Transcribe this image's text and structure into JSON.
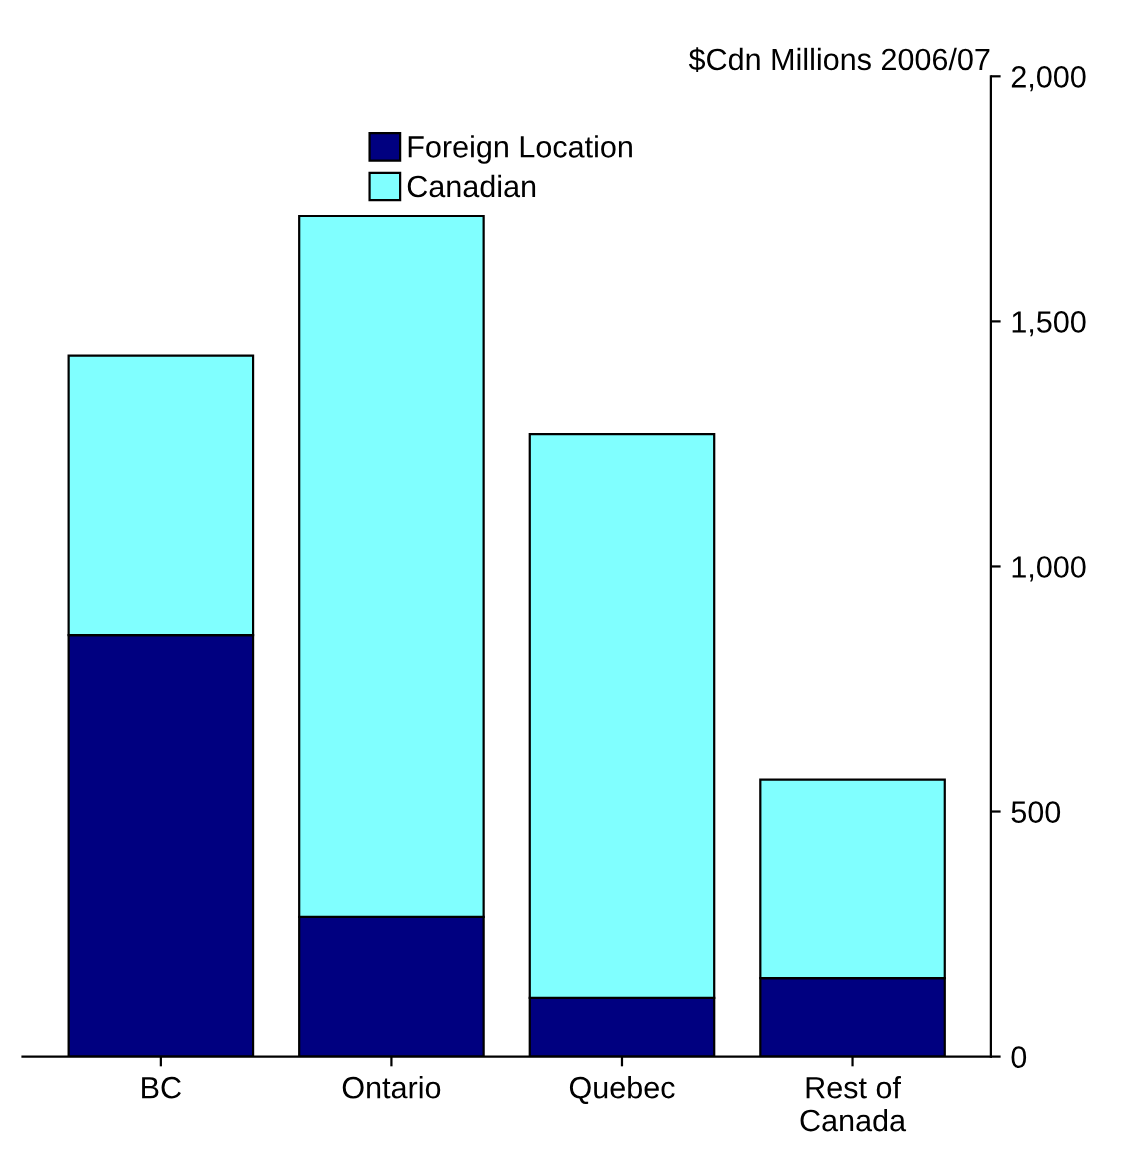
{
  "chart_data": {
    "type": "bar",
    "stacked": true,
    "ylabel": "$Cdn Millions 2006/07",
    "categories": [
      "BC",
      "Ontario",
      "Quebec",
      "Rest of\nCanada"
    ],
    "series": [
      {
        "name": "Foreign Location",
        "color": "#000080",
        "values": [
          860,
          285,
          120,
          160
        ]
      },
      {
        "name": "Canadian",
        "color": "#80ffff",
        "values": [
          570,
          1430,
          1150,
          405
        ]
      }
    ],
    "ylim": [
      0,
      2000
    ],
    "yticks": [
      {
        "value": 0,
        "label": "0"
      },
      {
        "value": 500,
        "label": "500"
      },
      {
        "value": 1000,
        "label": "1,000"
      },
      {
        "value": 1500,
        "label": "1,500"
      },
      {
        "value": 2000,
        "label": "2,000"
      }
    ],
    "grid": false,
    "legend": "top"
  }
}
